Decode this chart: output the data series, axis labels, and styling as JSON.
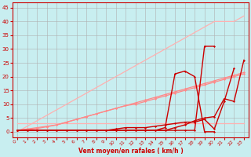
{
  "background_color": "#c8eef0",
  "grid_color": "#b0b0b0",
  "xlabel": "Vent moyen/en rafales ( km/h )",
  "xlabel_color": "#cc0000",
  "tick_color": "#cc0000",
  "axis_color": "#cc0000",
  "xlim": [
    -0.5,
    23.5
  ],
  "ylim": [
    -2,
    47
  ],
  "yticks": [
    0,
    5,
    10,
    15,
    20,
    25,
    30,
    35,
    40,
    45
  ],
  "xticks": [
    0,
    1,
    2,
    3,
    4,
    5,
    6,
    7,
    8,
    9,
    10,
    11,
    12,
    13,
    14,
    15,
    16,
    17,
    18,
    19,
    20,
    21,
    22,
    23
  ],
  "lines": [
    {
      "x": [
        0,
        1,
        2,
        3,
        4,
        5,
        6,
        7,
        8,
        9,
        10,
        11,
        12,
        13,
        14,
        15,
        16,
        17,
        18,
        19,
        20,
        21,
        22,
        23
      ],
      "y": [
        3,
        3,
        3,
        3,
        3,
        3,
        3,
        3,
        3,
        3,
        3,
        3,
        3,
        3,
        3,
        3,
        3,
        3,
        3,
        3,
        3,
        3,
        3,
        3
      ],
      "color": "#ffb0b0",
      "lw": 0.9,
      "marker": null,
      "ms": 0
    },
    {
      "x": [
        0,
        1,
        2,
        3,
        4,
        5,
        6,
        7,
        8,
        9,
        10,
        11,
        12,
        13,
        14,
        15,
        16,
        17,
        18,
        19,
        20,
        21,
        22,
        23
      ],
      "y": [
        0,
        2,
        4,
        6,
        8,
        10,
        12,
        14,
        16,
        18,
        20,
        22,
        24,
        26,
        28,
        30,
        32,
        34,
        36,
        38,
        40,
        40,
        40,
        42
      ],
      "color": "#ffb0b0",
      "lw": 0.9,
      "marker": null,
      "ms": 0
    },
    {
      "x": [
        0,
        1,
        2,
        3,
        4,
        5,
        6,
        7,
        8,
        9,
        10,
        11,
        12,
        13,
        14,
        15,
        16,
        17,
        18,
        19,
        20,
        21,
        22,
        23
      ],
      "y": [
        0.5,
        1,
        1.5,
        2,
        2.5,
        3.5,
        4.5,
        5.5,
        6.5,
        7.5,
        8.5,
        9.5,
        10.5,
        11.5,
        12.5,
        13.5,
        14.5,
        15.5,
        16.5,
        17.5,
        18.5,
        19.5,
        20.5,
        21.5
      ],
      "color": "#ff8888",
      "lw": 0.9,
      "marker": "D",
      "ms": 1.5
    },
    {
      "x": [
        0,
        1,
        2,
        3,
        4,
        5,
        6,
        7,
        8,
        9,
        10,
        11,
        12,
        13,
        14,
        15,
        16,
        17,
        18,
        19,
        20,
        21,
        22,
        23
      ],
      "y": [
        0.5,
        0.8,
        1.2,
        1.8,
        2.5,
        3.5,
        4.5,
        5.5,
        6.5,
        7.5,
        8.5,
        9.5,
        10,
        11,
        12,
        13,
        14,
        15,
        16,
        17,
        18,
        19,
        20,
        21
      ],
      "color": "#ff8888",
      "lw": 0.9,
      "marker": "D",
      "ms": 1.5
    },
    {
      "x": [
        0,
        1,
        2,
        3,
        4,
        5,
        6,
        7,
        8,
        9,
        10,
        11,
        12,
        13,
        14,
        15,
        16,
        17,
        18,
        19,
        20,
        21,
        22,
        23
      ],
      "y": [
        0.5,
        0.5,
        0.5,
        0.5,
        0.5,
        0.5,
        0.5,
        0.5,
        0.5,
        0.5,
        0.5,
        0.5,
        0.5,
        0.5,
        0.5,
        0.5,
        1.5,
        2.5,
        4,
        5,
        5.5,
        12,
        11,
        26
      ],
      "color": "#cc0000",
      "lw": 1.0,
      "marker": "D",
      "ms": 1.5
    },
    {
      "x": [
        0,
        1,
        2,
        3,
        4,
        5,
        6,
        7,
        8,
        9,
        10,
        11,
        12,
        13,
        14,
        15,
        16,
        17,
        18,
        19,
        20,
        21,
        22
      ],
      "y": [
        0.5,
        0.5,
        0.5,
        0.5,
        0.5,
        0.5,
        0.5,
        0.5,
        0.5,
        0.5,
        1,
        1.5,
        1.5,
        1.5,
        2,
        2.5,
        3,
        3.5,
        3.5,
        4.5,
        1,
        11,
        23
      ],
      "color": "#cc0000",
      "lw": 1.0,
      "marker": "D",
      "ms": 1.5
    },
    {
      "x": [
        0,
        1,
        2,
        3,
        4,
        5,
        6,
        7,
        8,
        9,
        10,
        11,
        12,
        13,
        14,
        15,
        16,
        17,
        18,
        19,
        20
      ],
      "y": [
        0.5,
        0.5,
        0.5,
        0.5,
        0.5,
        0.5,
        0.5,
        0.5,
        0.5,
        0.5,
        0.5,
        0.5,
        0.5,
        0.5,
        0.5,
        1.5,
        21,
        22,
        20,
        0,
        0
      ],
      "color": "#cc0000",
      "lw": 1.0,
      "marker": "D",
      "ms": 1.5
    },
    {
      "x": [
        0,
        1,
        2,
        3,
        4,
        5,
        6,
        7,
        8,
        9,
        10,
        11,
        12,
        13,
        14,
        15,
        16,
        17,
        18,
        19,
        20
      ],
      "y": [
        0.5,
        0.5,
        0.5,
        0.5,
        0.5,
        0.5,
        0.5,
        0.5,
        0.5,
        0.5,
        0.5,
        0.5,
        0.5,
        0.5,
        0.5,
        0.5,
        0.5,
        0.5,
        0.5,
        31,
        31
      ],
      "color": "#cc0000",
      "lw": 1.0,
      "marker": "D",
      "ms": 1.5
    }
  ]
}
